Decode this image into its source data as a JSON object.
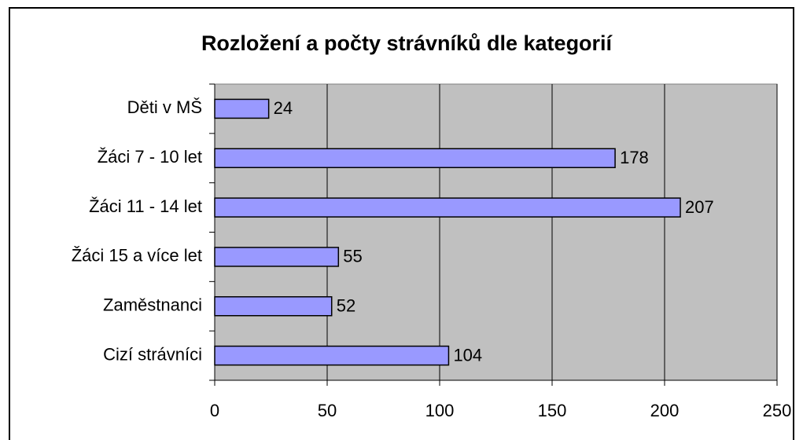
{
  "chart_data": {
    "type": "bar",
    "orientation": "horizontal",
    "title": "Rozložení a počty strávníků dle kategorií",
    "categories": [
      "Děti v MŠ",
      "Žáci 7 - 10 let",
      "Žáci 11 - 14 let",
      "Žáci 15 a více let",
      "Zaměstnanci",
      "Cizí strávníci"
    ],
    "values": [
      24,
      178,
      207,
      55,
      52,
      104
    ],
    "color": "#9999ff",
    "xlim": [
      0,
      250
    ],
    "xticks": [
      0,
      50,
      100,
      150,
      200,
      250
    ],
    "grid": true
  }
}
